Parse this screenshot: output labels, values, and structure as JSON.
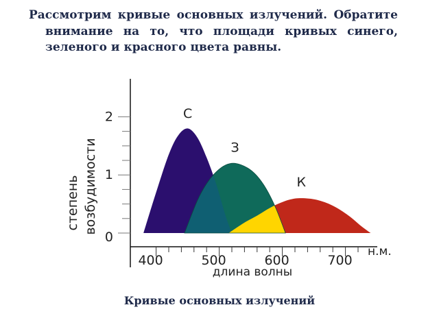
{
  "intro_text": "Рассмотрим кривые основных излучений. Обратите внимание на то, что площади кривых синего, зеленого и красного цвета равны.",
  "caption": "Кривые основных излучений",
  "chart_data": {
    "type": "area",
    "xlabel": "длина волны",
    "ylabel_line1": "степень",
    "ylabel_line2": "возбудимости",
    "x_unit": "н.м.",
    "x_ticks": [
      400,
      500,
      600,
      700
    ],
    "y_ticks": [
      0,
      1,
      2
    ],
    "xlim": [
      370,
      745
    ],
    "ylim": [
      0,
      2.3
    ],
    "series": [
      {
        "name": "С",
        "color": "#2b0f6e",
        "x": [
          380,
          400,
          420,
          435,
          450,
          465,
          480,
          495,
          510,
          520
        ],
        "y": [
          0,
          0.7,
          1.35,
          1.68,
          1.8,
          1.65,
          1.3,
          0.85,
          0.3,
          0
        ]
      },
      {
        "name": "З",
        "color": "#0f6a5a",
        "x": [
          445,
          465,
          480,
          495,
          510,
          525,
          545,
          560,
          575,
          590,
          605
        ],
        "y": [
          0,
          0.55,
          0.85,
          1.05,
          1.17,
          1.2,
          1.12,
          0.98,
          0.75,
          0.42,
          0
        ]
      },
      {
        "name": "К",
        "color": "#c0281a",
        "x": [
          515,
          540,
          560,
          585,
          610,
          630,
          655,
          680,
          705,
          725,
          740
        ],
        "y": [
          0,
          0.18,
          0.3,
          0.46,
          0.57,
          0.6,
          0.57,
          0.47,
          0.3,
          0.12,
          0
        ]
      }
    ],
    "overlap_colors": {
      "blue_green": "#0f5f72",
      "green_red": "#ffd500"
    }
  }
}
